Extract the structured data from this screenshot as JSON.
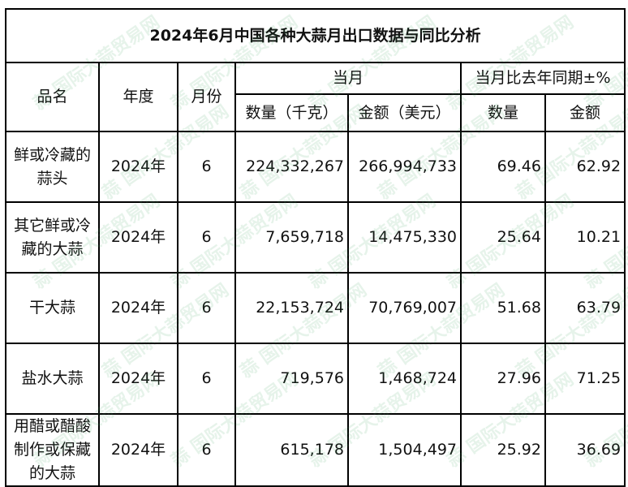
{
  "title": "2024年6月中国各种大蒜月出口数据与同比分析",
  "headers": {
    "name": "品名",
    "year": "年度",
    "month": "月份",
    "current_month": "当月",
    "yoy": "当月比去年同期±%",
    "qty_kg": "数量（千克）",
    "amount_usd": "金额（美元）",
    "yoy_qty": "数量",
    "yoy_amount": "金额"
  },
  "rows": [
    {
      "name": "鲜或冷藏的蒜头",
      "year": "2024年",
      "month": "6",
      "qty": "224,332,267",
      "amount": "266,994,733",
      "yoy_qty": "69.46",
      "yoy_amount": "62.92"
    },
    {
      "name": "其它鲜或冷藏的大蒜",
      "year": "2024年",
      "month": "6",
      "qty": "7,659,718",
      "amount": "14,475,330",
      "yoy_qty": "25.64",
      "yoy_amount": "10.21"
    },
    {
      "name": "干大蒜",
      "year": "2024年",
      "month": "6",
      "qty": "22,153,724",
      "amount": "70,769,007",
      "yoy_qty": "51.68",
      "yoy_amount": "63.79"
    },
    {
      "name": "盐水大蒜",
      "year": "2024年",
      "month": "6",
      "qty": "719,576",
      "amount": "1,468,724",
      "yoy_qty": "27.96",
      "yoy_amount": "71.25"
    },
    {
      "name": "用醋或醋酸制作或保藏的大蒜",
      "year": "2024年",
      "month": "6",
      "qty": "615,178",
      "amount": "1,504,497",
      "yoy_qty": "25.92",
      "yoy_amount": "36.69"
    }
  ],
  "watermark": "蒜 国际大蒜贸易网 www.51garlic.com"
}
